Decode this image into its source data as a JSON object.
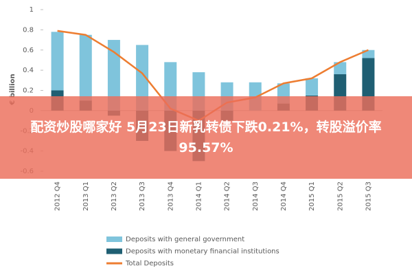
{
  "chart_data": {
    "type": "bar",
    "y_label": "€ billion",
    "categories": [
      "2012 Q4",
      "2013 Q1",
      "2013 Q2",
      "2013 Q3",
      "2013 Q4",
      "2014 Q1",
      "2014 Q2",
      "2014 Q3",
      "2014 Q4",
      "2015 Q1",
      "2015 Q2",
      "2015 Q3"
    ],
    "series": [
      {
        "name": "Deposits with general government",
        "color": "#7fc4dc",
        "kind": "bar",
        "values": [
          0.58,
          0.65,
          0.7,
          0.65,
          0.48,
          0.38,
          0.28,
          0.28,
          0.2,
          0.17,
          0.12,
          0.08
        ]
      },
      {
        "name": "Deposits with monetary financial institutions",
        "color": "#1f5f73",
        "kind": "bar",
        "values": [
          0.2,
          0.1,
          -0.05,
          -0.3,
          -0.4,
          -0.5,
          -0.1,
          0,
          0.07,
          0.15,
          0.36,
          0.52
        ]
      },
      {
        "name": "Total Deposits",
        "color": "#ed7d31",
        "kind": "line",
        "values": [
          0.79,
          0.75,
          0.58,
          0.37,
          0.02,
          -0.1,
          0.08,
          0.13,
          0.27,
          0.32,
          0.48,
          0.6
        ]
      }
    ],
    "ylim": [
      -0.6,
      1
    ],
    "yticks": [
      -0.6,
      -0.4,
      -0.2,
      0,
      0.2,
      0.4,
      0.6,
      0.8,
      1
    ]
  },
  "banner_text": "配资炒股哪家好 5月23日新乳转债下跌0.21%，转股溢价率95.57%"
}
